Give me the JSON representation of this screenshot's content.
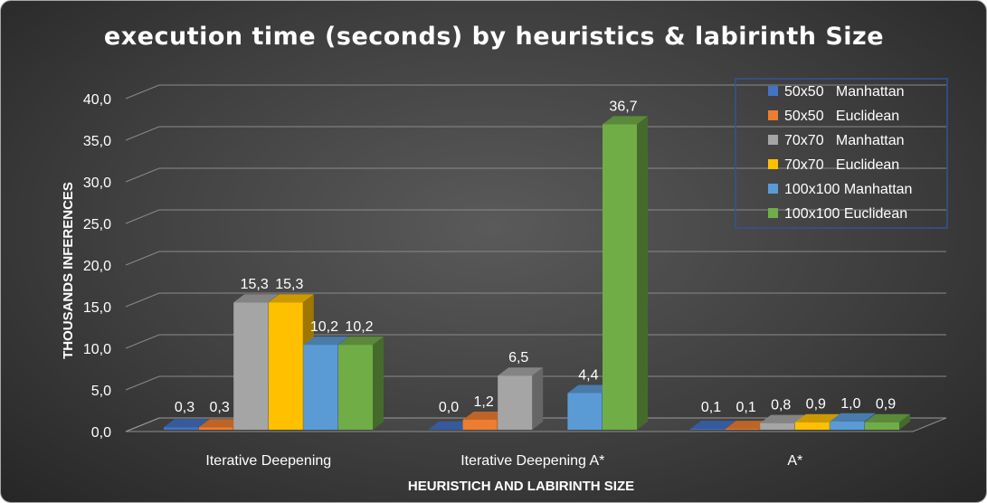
{
  "chart_data": {
    "type": "bar",
    "title": "execution time (seconds) by heuristics & labirinth Size",
    "xlabel": "HEURISTICH AND LABIRINTH SIZE",
    "ylabel": "THOUSANDS INFERENCES",
    "ylim": [
      0,
      40
    ],
    "yticks": [
      "0,0",
      "5,0",
      "10,0",
      "15,0",
      "20,0",
      "25,0",
      "30,0",
      "35,0",
      "40,0"
    ],
    "categories": [
      "Iterative Deepening",
      "Iterative Deepening A*",
      "A*"
    ],
    "grid": true,
    "legend_position": "top-right",
    "series": [
      {
        "name": "50x50   Manhattan",
        "color": "#4472c4",
        "values": [
          0.3,
          0.0,
          0.1
        ],
        "labels": [
          "0,3",
          "0,0",
          "0,1"
        ]
      },
      {
        "name": "50x50   Euclidean",
        "color": "#ed7d31",
        "values": [
          0.3,
          1.2,
          0.1
        ],
        "labels": [
          "0,3",
          "1,2",
          "0,1"
        ]
      },
      {
        "name": "70x70   Manhattan",
        "color": "#a5a5a5",
        "values": [
          15.3,
          6.5,
          0.8
        ],
        "labels": [
          "15,3",
          "6,5",
          "0,8"
        ]
      },
      {
        "name": "70x70   Euclidean",
        "color": "#ffc000",
        "values": [
          15.3,
          null,
          0.9
        ],
        "labels": [
          "15,3",
          null,
          "0,9"
        ]
      },
      {
        "name": "100x100 Manhattan",
        "color": "#5b9bd5",
        "values": [
          10.2,
          4.4,
          1.0
        ],
        "labels": [
          "10,2",
          "4,4",
          "1,0"
        ]
      },
      {
        "name": "100x100 Euclidean",
        "color": "#70ad47",
        "values": [
          10.2,
          36.7,
          0.9
        ],
        "labels": [
          "10,2",
          "36,7",
          "0,9"
        ]
      }
    ]
  }
}
